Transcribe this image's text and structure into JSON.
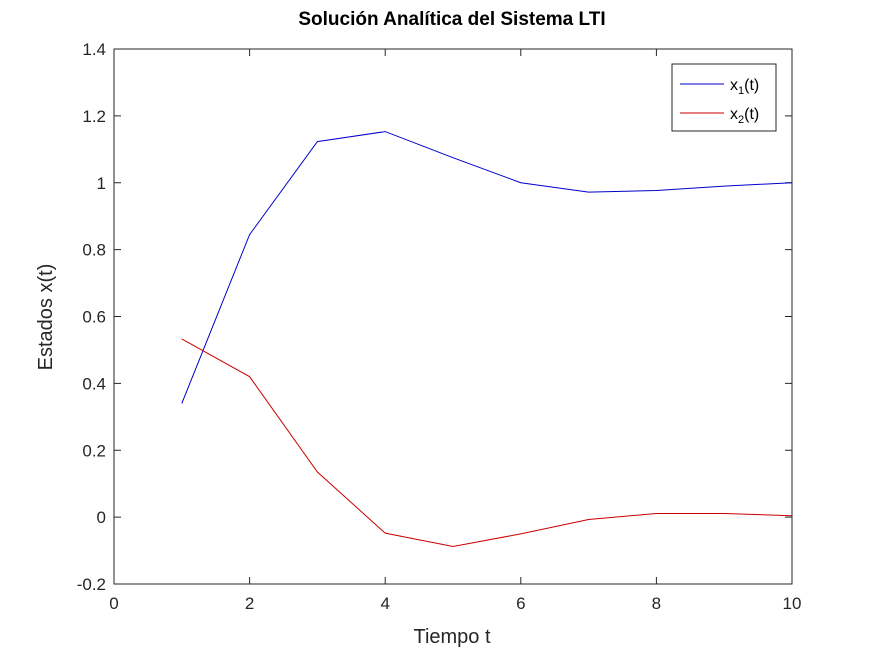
{
  "chart_data": {
    "type": "line",
    "title": "Solución Analítica del Sistema LTI",
    "xlabel": "Tiempo t",
    "ylabel": "Estados x(t)",
    "xlim": [
      0,
      10
    ],
    "ylim": [
      -0.2,
      1.4
    ],
    "xticks": [
      "0",
      "2",
      "4",
      "6",
      "8",
      "10"
    ],
    "yticks": [
      "-0.2",
      "0",
      "0.2",
      "0.4",
      "0.6",
      "0.8",
      "1",
      "1.2",
      "1.4"
    ],
    "grid": false,
    "legend_position": "top-right",
    "x": [
      1,
      2,
      3,
      4,
      5,
      6,
      7,
      8,
      9,
      10
    ],
    "series": [
      {
        "name": "x1(t)",
        "legend_base": "x",
        "legend_sub": "1",
        "legend_suffix": "(t)",
        "color": "#0000cc",
        "values": [
          0.34,
          0.845,
          1.123,
          1.153,
          1.075,
          1.0,
          0.972,
          0.977,
          0.99,
          1.0
        ]
      },
      {
        "name": "x2(t)",
        "legend_base": "x",
        "legend_sub": "2",
        "legend_suffix": "(t)",
        "color": "#cc0000",
        "values": [
          0.533,
          0.42,
          0.135,
          -0.048,
          -0.088,
          -0.05,
          -0.007,
          0.011,
          0.011,
          0.004
        ]
      }
    ]
  }
}
